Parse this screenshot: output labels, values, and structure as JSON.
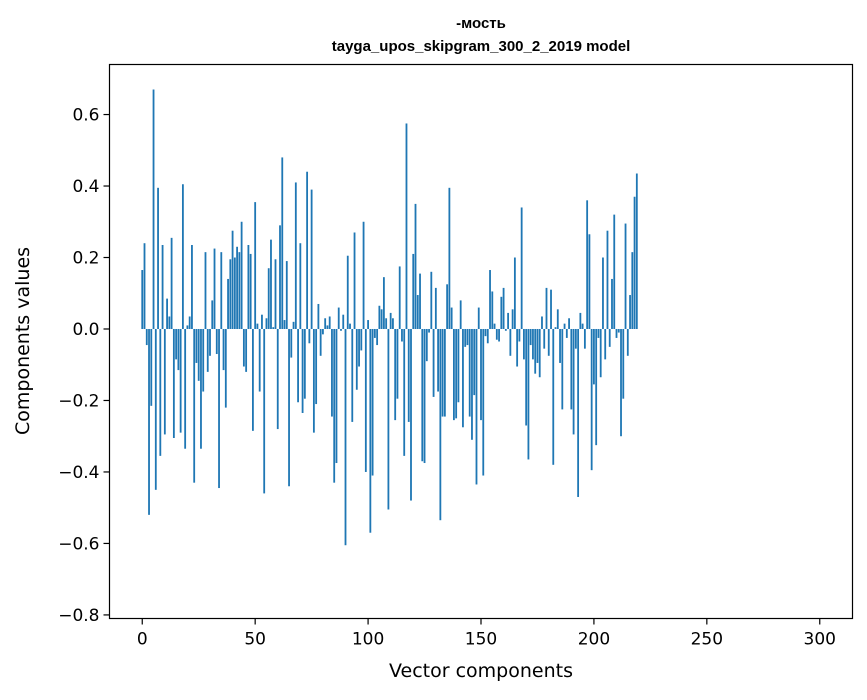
{
  "chart_data": {
    "type": "bar",
    "title_line1": "-мость",
    "title_line2": "tayga_upos_skipgram_300_2_2019 model",
    "xlabel": "Vector components",
    "ylabel": "Components values",
    "xlim": [
      -14.5,
      314.5
    ],
    "ylim": [
      -0.81,
      0.74
    ],
    "x_ticks": [
      {
        "value": 0,
        "label": "0"
      },
      {
        "value": 50,
        "label": "50"
      },
      {
        "value": 100,
        "label": "100"
      },
      {
        "value": 150,
        "label": "150"
      },
      {
        "value": 200,
        "label": "200"
      },
      {
        "value": 250,
        "label": "250"
      },
      {
        "value": 300,
        "label": "300"
      }
    ],
    "y_ticks": [
      {
        "value": 0.6,
        "label": "0.6"
      },
      {
        "value": 0.4,
        "label": "0.4"
      },
      {
        "value": 0.2,
        "label": "0.2"
      },
      {
        "value": 0.0,
        "label": "0.0"
      },
      {
        "value": -0.2,
        "label": "−0.2"
      },
      {
        "value": -0.4,
        "label": "−0.4"
      },
      {
        "value": -0.6,
        "label": "−0.6"
      },
      {
        "value": -0.8,
        "label": "−0.8"
      }
    ],
    "bar_color": "#1f77b4",
    "values": [
      0.165,
      0.24,
      -0.045,
      -0.52,
      -0.215,
      0.67,
      -0.45,
      0.395,
      -0.355,
      0.235,
      -0.295,
      0.085,
      0.035,
      0.255,
      -0.305,
      -0.085,
      -0.115,
      -0.29,
      0.405,
      -0.335,
      0.01,
      0.035,
      0.235,
      -0.43,
      -0.095,
      -0.145,
      -0.335,
      -0.175,
      0.215,
      -0.12,
      -0.075,
      0.08,
      0.225,
      -0.07,
      -0.445,
      0.215,
      -0.115,
      -0.22,
      0.14,
      0.195,
      0.275,
      0.2,
      0.23,
      0.215,
      0.3,
      -0.105,
      -0.12,
      0.235,
      0.21,
      -0.285,
      0.355,
      0.015,
      -0.175,
      0.04,
      -0.46,
      0.03,
      0.17,
      0.25,
      0.005,
      0.195,
      -0.28,
      0.29,
      0.48,
      0.025,
      0.19,
      -0.44,
      -0.08,
      0.02,
      0.41,
      -0.205,
      0.24,
      -0.235,
      -0.195,
      0.44,
      -0.04,
      0.39,
      -0.29,
      -0.21,
      0.07,
      -0.075,
      -0.015,
      0.03,
      0.01,
      0.035,
      -0.245,
      -0.43,
      -0.375,
      0.06,
      -0.005,
      0.04,
      -0.605,
      0.205,
      0.015,
      -0.26,
      0.27,
      -0.17,
      -0.105,
      -0.06,
      0.3,
      -0.4,
      0.025,
      -0.57,
      -0.41,
      -0.025,
      -0.045,
      0.065,
      0.055,
      0.145,
      0.03,
      -0.505,
      0.045,
      0.03,
      -0.255,
      -0.195,
      0.175,
      -0.035,
      -0.355,
      0.575,
      -0.26,
      -0.48,
      0.21,
      0.35,
      0.095,
      0.155,
      -0.37,
      -0.375,
      -0.09,
      -0.01,
      0.16,
      -0.19,
      0.115,
      -0.175,
      -0.535,
      -0.245,
      -0.245,
      0.125,
      0.395,
      0.06,
      -0.255,
      -0.25,
      -0.205,
      0.08,
      -0.275,
      -0.05,
      -0.045,
      -0.245,
      -0.31,
      -0.185,
      -0.435,
      0.06,
      -0.255,
      -0.41,
      -0.02,
      -0.04,
      0.165,
      0.105,
      0.015,
      -0.03,
      -0.035,
      0.09,
      0.115,
      -0.005,
      0.045,
      -0.075,
      0.055,
      0.2,
      -0.105,
      -0.035,
      0.34,
      -0.085,
      -0.27,
      -0.365,
      -0.045,
      -0.085,
      -0.125,
      -0.095,
      -0.135,
      0.035,
      -0.055,
      0.115,
      -0.075,
      0.11,
      -0.38,
      0.005,
      0.055,
      -0.095,
      -0.225,
      0.015,
      -0.025,
      0.03,
      -0.225,
      -0.295,
      -0.055,
      -0.47,
      0.045,
      0.015,
      -0.055,
      0.36,
      0.265,
      -0.395,
      -0.155,
      -0.325,
      -0.025,
      -0.135,
      0.2,
      -0.085,
      0.275,
      -0.05,
      0.14,
      0.32,
      -0.025,
      -0.01,
      -0.3,
      -0.195,
      0.295,
      -0.075,
      0.095,
      0.215,
      0.37,
      0.435
    ]
  }
}
